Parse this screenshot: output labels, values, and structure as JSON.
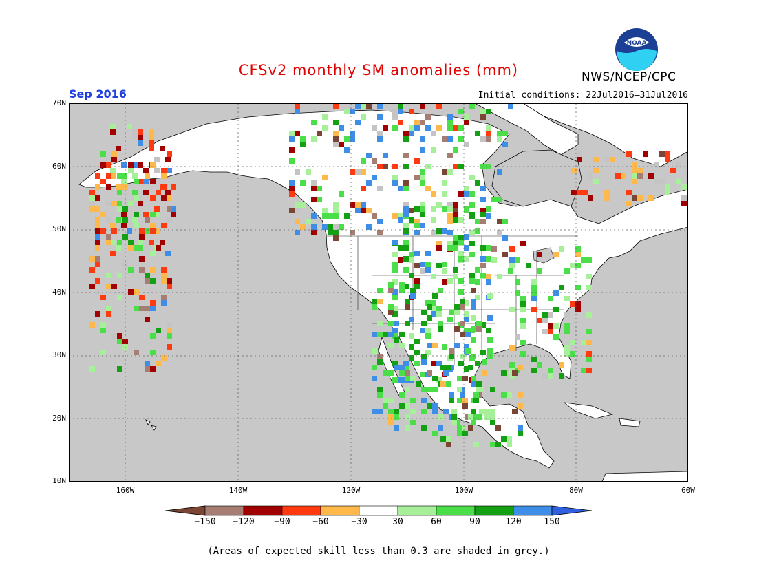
{
  "title": "CFSv2 monthly SM anomalies (mm)",
  "month": "Sep 2016",
  "initial_conditions": "Initial conditions: 22Jul2016–31Jul2016",
  "agency": "NWS/NCEP/CPC",
  "logo_text": "NOAA",
  "footnote": "(Areas of expected skill less than 0.3 are shaded in grey.)",
  "colors": {
    "title": "#e00000",
    "month": "#2040e0",
    "ocean": "#c8c8c8",
    "land": "#ffffff",
    "neg150": "#7a4535",
    "neg120": "#a67d72",
    "neg90": "#a00000",
    "neg60": "#ff3a10",
    "neg30": "#ffb84a",
    "pos30": "#ffffff",
    "pos60": "#a6f09a",
    "pos90": "#4ade48",
    "pos120": "#13a013",
    "pos150": "#3e8ee8",
    "over150": "#2f60e0",
    "skill_grey": "#c4c4c4"
  },
  "lat_labels": [
    "70N",
    "60N",
    "50N",
    "40N",
    "30N",
    "20N",
    "10N"
  ],
  "lon_labels": [
    "160W",
    "140W",
    "120W",
    "100W",
    "80W",
    "60W"
  ],
  "colorbar_labels": [
    "−150",
    "−120",
    "−90",
    "−60",
    "−30",
    "30",
    "60",
    "90",
    "120",
    "150"
  ]
}
